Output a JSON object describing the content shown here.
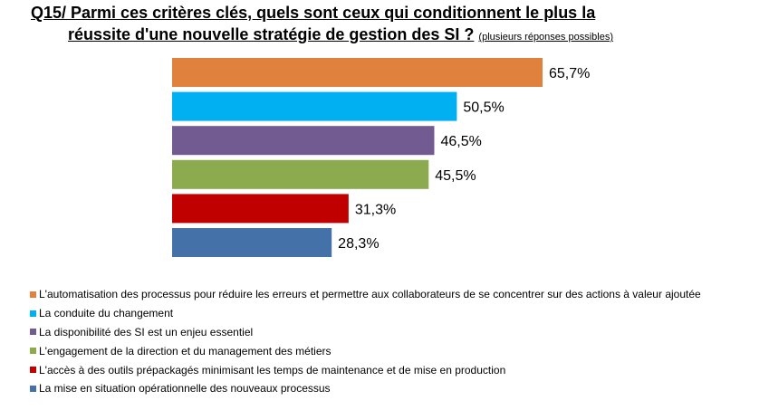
{
  "title": {
    "line1": "Q15/ Parmi ces critères clés, quels sont ceux qui conditionnent le plus la",
    "line2": "réussite d'une nouvelle stratégie de gestion des SI ?",
    "note": "(plusieurs réponses possibles)"
  },
  "chart_data": {
    "type": "bar",
    "orientation": "horizontal",
    "categories": [
      "L'automatisation des processus pour réduire les erreurs et permettre aux collaborateurs de se concentrer sur des actions à valeur ajoutée",
      "La conduite du changement",
      "La disponibilité des SI est un enjeu essentiel",
      "L'engagement de la direction et du management des métiers",
      "L'accès à des outils prépackagés minimisant les temps de maintenance et de mise en production",
      "La mise en situation opérationnelle des nouveaux processus"
    ],
    "values": [
      65.7,
      50.5,
      46.5,
      45.5,
      31.3,
      28.3
    ],
    "data_labels": [
      "65,7%",
      "50,5%",
      "46,5%",
      "45,5%",
      "31,3%",
      "28,3%"
    ],
    "colors": [
      "#E0813E",
      "#00B0F0",
      "#725B91",
      "#8CAA4E",
      "#C00000",
      "#4472A8"
    ],
    "xlim": [
      0,
      65.7
    ],
    "grid": false,
    "legend_position": "bottom-left"
  }
}
